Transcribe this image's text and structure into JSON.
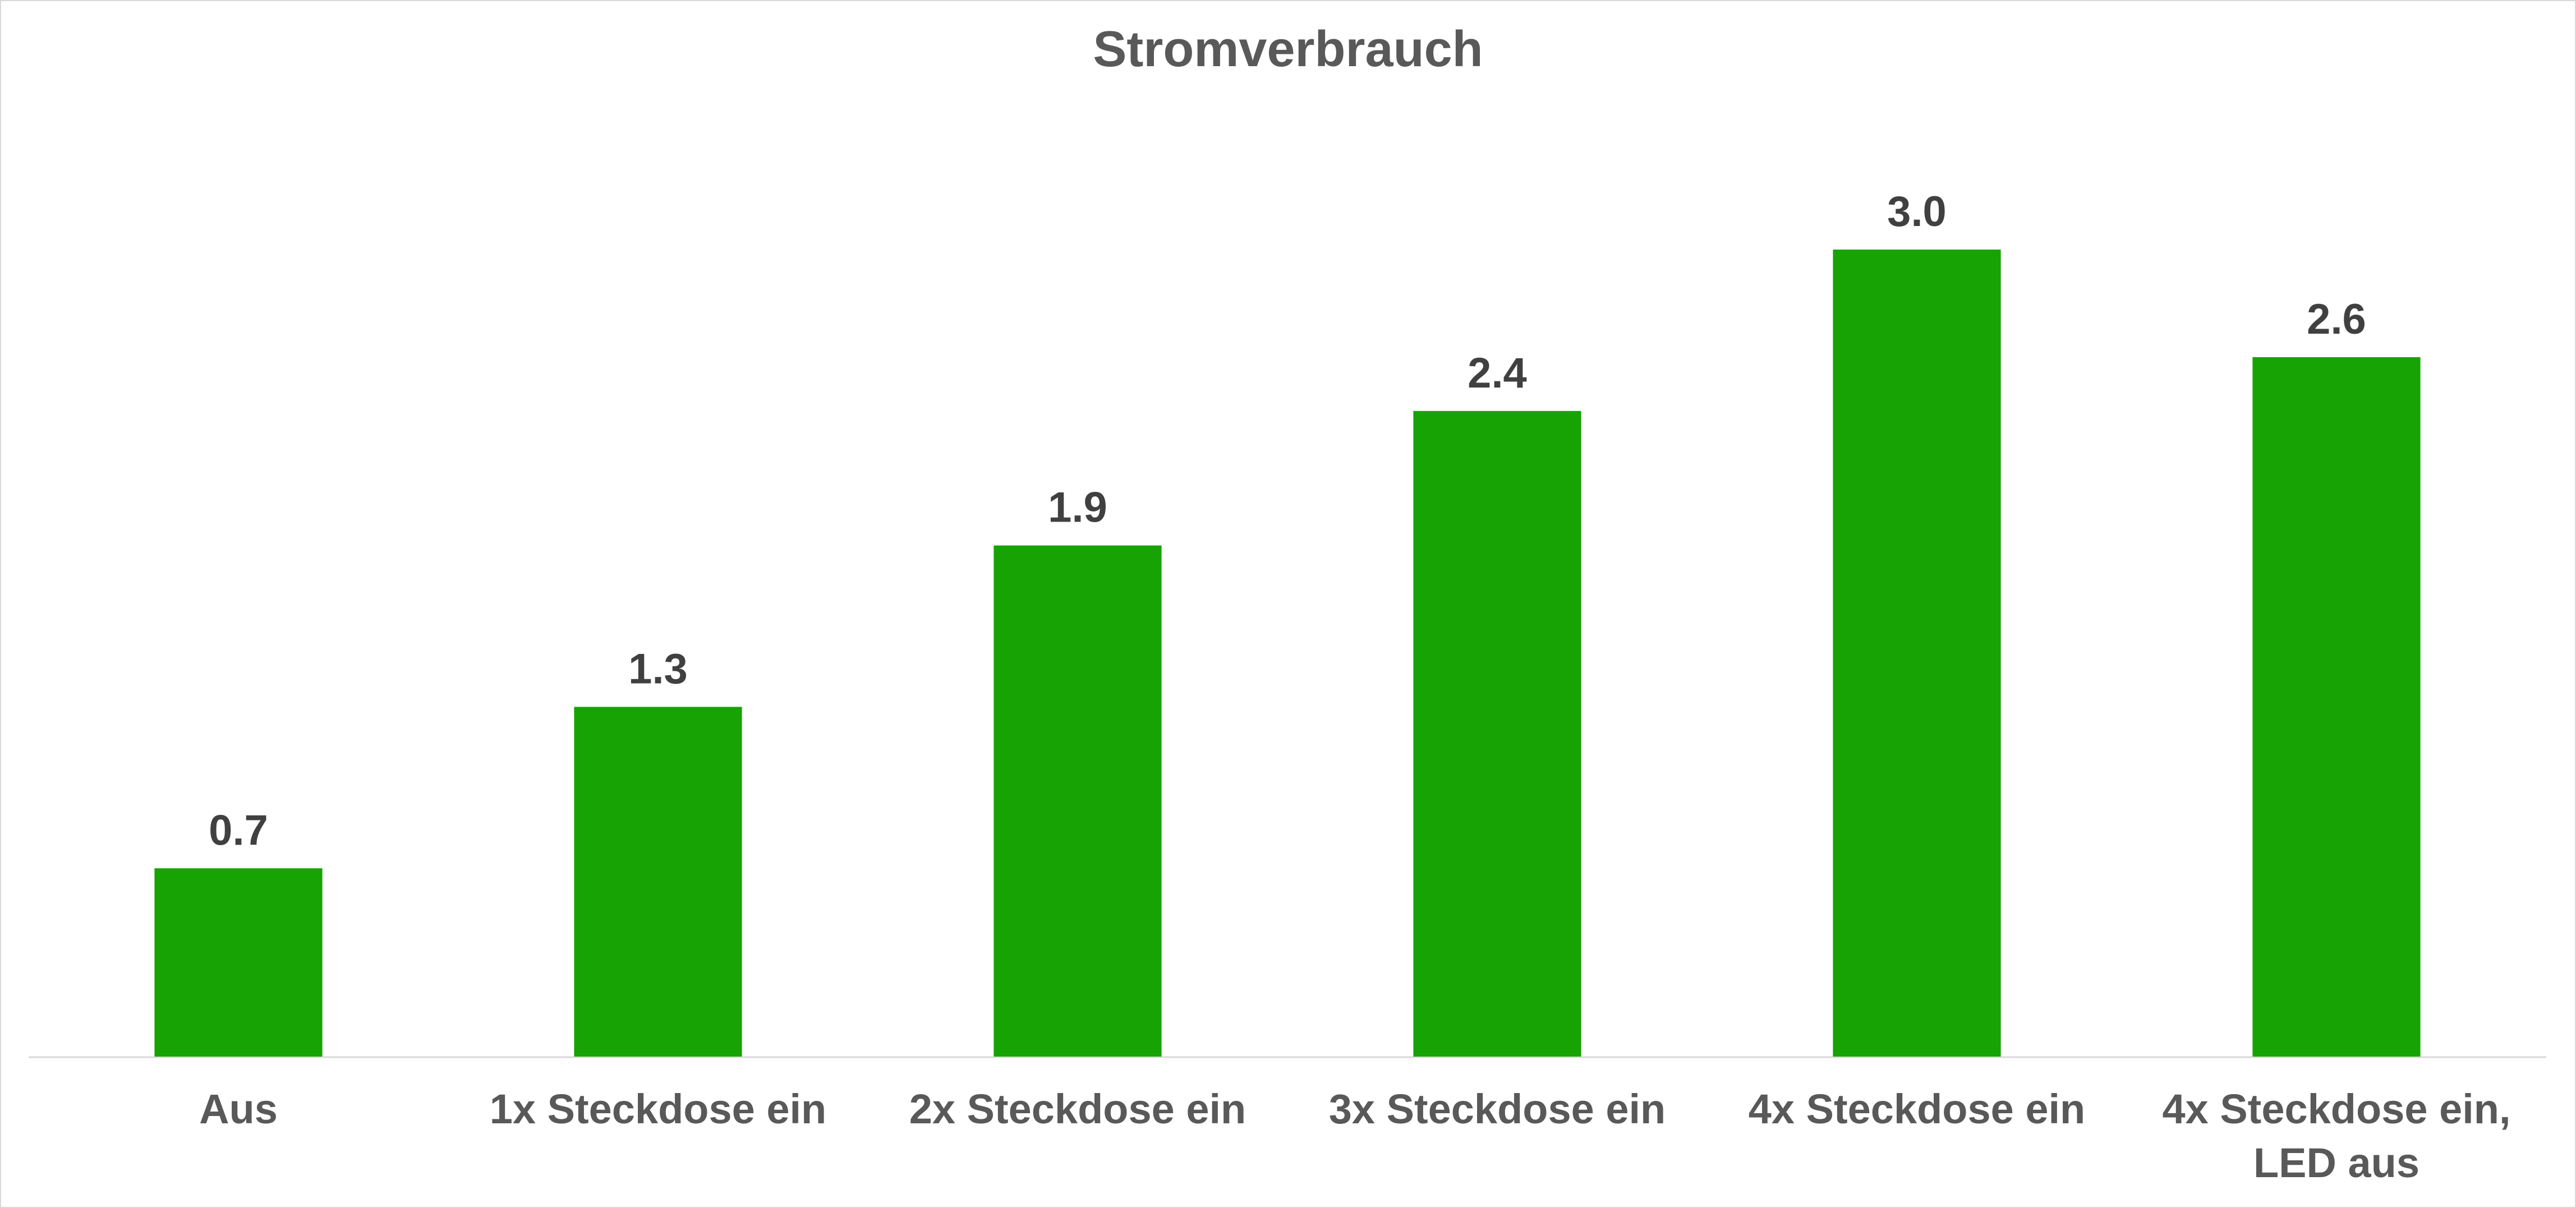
{
  "chart_data": {
    "type": "bar",
    "title": "Stromverbrauch",
    "categories": [
      "Aus",
      "1x Steckdose ein",
      "2x Steckdose ein",
      "3x Steckdose ein",
      "4x Steckdose ein",
      "4x Steckdose ein, LED aus"
    ],
    "values": [
      0.7,
      1.3,
      1.9,
      2.4,
      3,
      2.6
    ],
    "value_labels": [
      "0.7",
      "1.3",
      "1.9",
      "2.4",
      "3.0",
      "2.6"
    ],
    "color": "#17a303"
  }
}
